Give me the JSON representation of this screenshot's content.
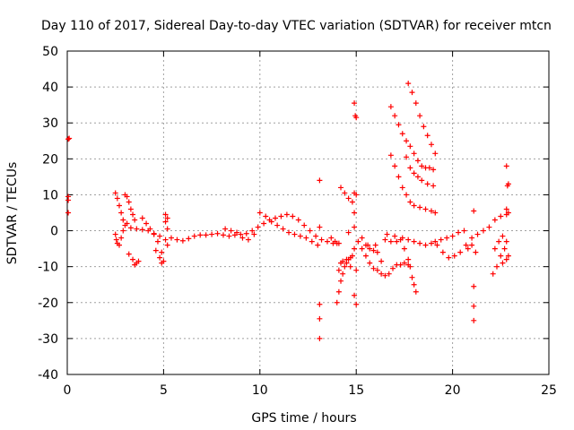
{
  "chart_data": {
    "type": "scatter",
    "title": "Day 110 of 2017, Sidereal Day-to-day VTEC variation (SDTVAR) for receiver mtcn",
    "xlabel": "GPS time / hours",
    "ylabel": "SDTVAR / TECUs",
    "xlim": [
      0,
      25
    ],
    "ylim": [
      -40,
      50
    ],
    "xticks": [
      0,
      5,
      10,
      15,
      20,
      25
    ],
    "yticks": [
      -40,
      -30,
      -20,
      -10,
      0,
      10,
      20,
      30,
      40,
      50
    ],
    "grid": true,
    "marker": "+",
    "color": "#ff0000",
    "series": [
      {
        "name": "SDTVAR",
        "points": [
          [
            0.05,
            25.5
          ],
          [
            0.1,
            25.7
          ],
          [
            0.05,
            9.5
          ],
          [
            0.05,
            8.5
          ],
          [
            0.05,
            5.0
          ],
          [
            2.5,
            10.5
          ],
          [
            2.6,
            9.0
          ],
          [
            2.7,
            7.0
          ],
          [
            2.8,
            5.0
          ],
          [
            2.9,
            3.0
          ],
          [
            3.0,
            1.5
          ],
          [
            2.5,
            -1.0
          ],
          [
            2.55,
            -2.5
          ],
          [
            2.6,
            -3.5
          ],
          [
            2.7,
            -4.0
          ],
          [
            2.8,
            -2.0
          ],
          [
            2.9,
            0.0
          ],
          [
            3.0,
            10.0
          ],
          [
            3.1,
            9.5
          ],
          [
            3.2,
            8.0
          ],
          [
            3.3,
            6.0
          ],
          [
            3.4,
            4.5
          ],
          [
            3.5,
            3.0
          ],
          [
            3.1,
            2.0
          ],
          [
            3.3,
            0.8
          ],
          [
            3.6,
            0.5
          ],
          [
            3.9,
            0.3
          ],
          [
            4.2,
            0.0
          ],
          [
            4.5,
            -0.8
          ],
          [
            4.8,
            -1.5
          ],
          [
            3.2,
            -6.5
          ],
          [
            3.4,
            -8.0
          ],
          [
            3.5,
            -9.5
          ],
          [
            3.6,
            -9.0
          ],
          [
            3.7,
            -8.5
          ],
          [
            3.9,
            3.5
          ],
          [
            4.1,
            2.0
          ],
          [
            4.3,
            0.5
          ],
          [
            4.5,
            -1.0
          ],
          [
            4.7,
            -3.0
          ],
          [
            4.9,
            -6.0
          ],
          [
            5.0,
            -8.5
          ],
          [
            4.6,
            -5.5
          ],
          [
            4.8,
            -7.5
          ],
          [
            4.9,
            -9.0
          ],
          [
            5.1,
            4.5
          ],
          [
            5.2,
            3.5
          ],
          [
            5.1,
            2.5
          ],
          [
            5.2,
            0.5
          ],
          [
            5.1,
            -2.5
          ],
          [
            5.2,
            -4.0
          ],
          [
            5.4,
            -2.0
          ],
          [
            5.7,
            -2.5
          ],
          [
            6.0,
            -2.8
          ],
          [
            6.3,
            -2.2
          ],
          [
            6.6,
            -1.5
          ],
          [
            6.9,
            -1.2
          ],
          [
            7.2,
            -1.2
          ],
          [
            7.5,
            -1.0
          ],
          [
            7.8,
            -0.8
          ],
          [
            8.1,
            -1.2
          ],
          [
            8.4,
            -1.5
          ],
          [
            8.7,
            -1.2
          ],
          [
            9.0,
            -1.0
          ],
          [
            9.3,
            -0.8
          ],
          [
            9.6,
            0.0
          ],
          [
            9.9,
            1.0
          ],
          [
            10.2,
            2.0
          ],
          [
            10.5,
            3.0
          ],
          [
            10.8,
            3.5
          ],
          [
            11.1,
            4.0
          ],
          [
            11.4,
            4.5
          ],
          [
            11.7,
            4.0
          ],
          [
            12.0,
            3.0
          ],
          [
            12.3,
            1.5
          ],
          [
            12.6,
            0.0
          ],
          [
            12.9,
            -1.5
          ],
          [
            13.2,
            -2.5
          ],
          [
            13.5,
            -3.0
          ],
          [
            13.8,
            -3.5
          ],
          [
            14.0,
            -3.5
          ],
          [
            10.0,
            5.0
          ],
          [
            10.3,
            4.0
          ],
          [
            10.6,
            2.5
          ],
          [
            10.9,
            1.5
          ],
          [
            11.2,
            0.5
          ],
          [
            11.5,
            -0.5
          ],
          [
            11.8,
            -1.0
          ],
          [
            12.1,
            -1.5
          ],
          [
            12.4,
            -2.0
          ],
          [
            12.7,
            -3.0
          ],
          [
            13.0,
            -4.0
          ],
          [
            8.2,
            0.5
          ],
          [
            8.5,
            0.0
          ],
          [
            8.8,
            -0.5
          ],
          [
            9.1,
            -2.0
          ],
          [
            9.4,
            -2.5
          ],
          [
            9.7,
            -1.0
          ],
          [
            13.1,
            14.0
          ],
          [
            13.1,
            1.0
          ],
          [
            13.1,
            -20.5
          ],
          [
            13.1,
            -24.5
          ],
          [
            13.1,
            -30.0
          ],
          [
            13.7,
            -2.0
          ],
          [
            13.9,
            -3.0
          ],
          [
            14.1,
            -3.5
          ],
          [
            14.0,
            -20.0
          ],
          [
            14.1,
            -17.0
          ],
          [
            14.2,
            -14.0
          ],
          [
            14.3,
            -12.0
          ],
          [
            14.4,
            -10.0
          ],
          [
            14.5,
            -9.0
          ],
          [
            14.6,
            -8.0
          ],
          [
            14.7,
            -7.5
          ],
          [
            14.8,
            -7.0
          ],
          [
            14.1,
            -11.0
          ],
          [
            14.2,
            -9.0
          ],
          [
            14.3,
            -8.5
          ],
          [
            14.5,
            -8.0
          ],
          [
            14.7,
            -10.0
          ],
          [
            14.2,
            12.0
          ],
          [
            14.4,
            10.5
          ],
          [
            14.6,
            9.0
          ],
          [
            14.8,
            8.0
          ],
          [
            14.6,
            -0.5
          ],
          [
            14.9,
            10.5
          ],
          [
            15.0,
            10.0
          ],
          [
            14.9,
            1.0
          ],
          [
            14.9,
            5.0
          ],
          [
            14.9,
            35.5
          ],
          [
            14.95,
            32.0
          ],
          [
            15.0,
            31.5
          ],
          [
            14.9,
            -18.0
          ],
          [
            15.0,
            -20.5
          ],
          [
            15.0,
            -11.0
          ],
          [
            14.9,
            -5.0
          ],
          [
            15.1,
            -3.0
          ],
          [
            15.3,
            -5.0
          ],
          [
            15.5,
            -7.0
          ],
          [
            15.7,
            -9.0
          ],
          [
            15.9,
            -10.5
          ],
          [
            16.1,
            -11.0
          ],
          [
            16.3,
            -12.0
          ],
          [
            16.5,
            -12.5
          ],
          [
            16.7,
            -12.0
          ],
          [
            16.9,
            -10.5
          ],
          [
            17.1,
            -9.5
          ],
          [
            17.3,
            -9.5
          ],
          [
            17.5,
            -9.0
          ],
          [
            17.7,
            -9.5
          ],
          [
            15.5,
            -4.0
          ],
          [
            15.7,
            -5.0
          ],
          [
            15.9,
            -5.5
          ],
          [
            16.1,
            -6.0
          ],
          [
            16.3,
            -8.5
          ],
          [
            15.3,
            -2.0
          ],
          [
            15.6,
            -4.0
          ],
          [
            16.0,
            -4.0
          ],
          [
            16.8,
            34.5
          ],
          [
            17.0,
            32.0
          ],
          [
            17.2,
            29.5
          ],
          [
            17.4,
            27.0
          ],
          [
            17.6,
            25.0
          ],
          [
            17.8,
            23.5
          ],
          [
            18.0,
            21.5
          ],
          [
            18.2,
            19.5
          ],
          [
            18.4,
            18.0
          ],
          [
            18.6,
            17.5
          ],
          [
            18.8,
            17.5
          ],
          [
            19.0,
            17.0
          ],
          [
            17.7,
            41.0
          ],
          [
            17.9,
            38.5
          ],
          [
            18.1,
            35.5
          ],
          [
            18.3,
            32.0
          ],
          [
            18.5,
            29.0
          ],
          [
            18.7,
            26.5
          ],
          [
            18.9,
            24.0
          ],
          [
            19.1,
            21.5
          ],
          [
            16.8,
            21.0
          ],
          [
            17.0,
            18.0
          ],
          [
            17.2,
            15.0
          ],
          [
            17.4,
            12.0
          ],
          [
            17.6,
            10.0
          ],
          [
            17.8,
            8.0
          ],
          [
            18.0,
            7.0
          ],
          [
            18.3,
            6.5
          ],
          [
            18.6,
            6.0
          ],
          [
            18.9,
            5.5
          ],
          [
            19.1,
            5.0
          ],
          [
            17.6,
            20.5
          ],
          [
            17.8,
            17.5
          ],
          [
            18.0,
            16.0
          ],
          [
            18.2,
            15.0
          ],
          [
            18.4,
            14.0
          ],
          [
            18.7,
            13.0
          ],
          [
            19.0,
            12.5
          ],
          [
            16.5,
            -2.5
          ],
          [
            16.8,
            -3.0
          ],
          [
            17.1,
            -3.0
          ],
          [
            17.4,
            -2.0
          ],
          [
            17.7,
            -2.5
          ],
          [
            18.0,
            -3.0
          ],
          [
            18.3,
            -3.5
          ],
          [
            18.6,
            -4.0
          ],
          [
            18.9,
            -3.5
          ],
          [
            16.6,
            -1.0
          ],
          [
            17.0,
            -1.5
          ],
          [
            17.3,
            -2.5
          ],
          [
            17.5,
            -5.0
          ],
          [
            17.7,
            -8.0
          ],
          [
            17.8,
            -10.0
          ],
          [
            17.9,
            -13.0
          ],
          [
            18.0,
            -15.0
          ],
          [
            18.1,
            -17.0
          ],
          [
            19.1,
            -3.0
          ],
          [
            19.4,
            -2.5
          ],
          [
            19.7,
            -2.0
          ],
          [
            20.0,
            -1.5
          ],
          [
            20.3,
            -0.5
          ],
          [
            20.6,
            0.0
          ],
          [
            19.2,
            -4.0
          ],
          [
            19.5,
            -6.0
          ],
          [
            19.8,
            -7.5
          ],
          [
            20.1,
            -7.0
          ],
          [
            20.4,
            -6.0
          ],
          [
            20.7,
            -4.0
          ],
          [
            21.0,
            -2.0
          ],
          [
            21.3,
            -1.0
          ],
          [
            21.6,
            0.0
          ],
          [
            21.9,
            1.0
          ],
          [
            22.2,
            3.0
          ],
          [
            22.5,
            4.0
          ],
          [
            22.8,
            4.5
          ],
          [
            21.1,
            5.5
          ],
          [
            21.1,
            -15.5
          ],
          [
            21.1,
            -21.0
          ],
          [
            21.1,
            -25.0
          ],
          [
            20.8,
            -5.0
          ],
          [
            21.0,
            -4.0
          ],
          [
            21.2,
            -6.0
          ],
          [
            22.1,
            -12.0
          ],
          [
            22.3,
            -10.0
          ],
          [
            22.5,
            -7.0
          ],
          [
            22.7,
            -5.0
          ],
          [
            22.8,
            -3.0
          ],
          [
            22.2,
            -5.0
          ],
          [
            22.4,
            -3.0
          ],
          [
            22.6,
            -1.5
          ],
          [
            22.8,
            18.0
          ],
          [
            22.85,
            12.5
          ],
          [
            22.9,
            13.0
          ],
          [
            22.8,
            6.0
          ],
          [
            22.9,
            5.0
          ],
          [
            22.8,
            -8.0
          ],
          [
            22.9,
            -7.0
          ],
          [
            22.6,
            -9.0
          ]
        ]
      }
    ]
  }
}
